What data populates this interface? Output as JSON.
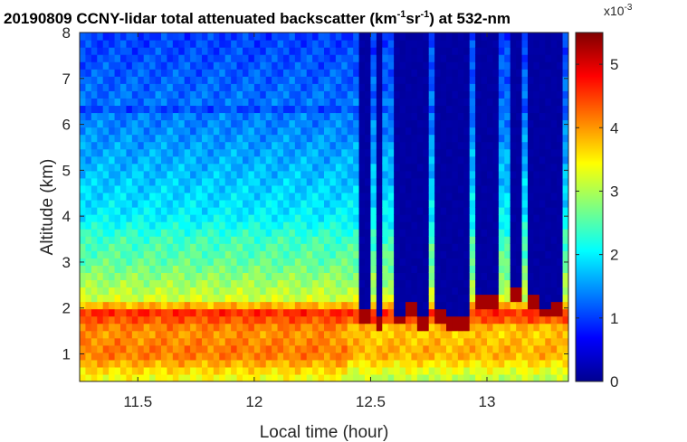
{
  "chart_data": {
    "type": "heatmap",
    "title": {
      "prefix": "20190809 CCNY-lidar total attenuated backscatter (km",
      "sup1": "-1",
      "mid": "sr",
      "sup2": "-1",
      "suffix": ") at 532-nm"
    },
    "xlabel": "Local time (hour)",
    "ylabel": "Altitude (km)",
    "xlim": [
      11.25,
      13.35
    ],
    "ylim": [
      0.4,
      8
    ],
    "xticks": [
      "11.5",
      "12",
      "12.5",
      "13"
    ],
    "xtick_values": [
      11.5,
      12,
      12.5,
      13
    ],
    "yticks": [
      "1",
      "2",
      "3",
      "4",
      "5",
      "6",
      "7",
      "8"
    ],
    "ytick_values": [
      1,
      2,
      3,
      4,
      5,
      6,
      7,
      8
    ],
    "colorbar": {
      "min": 0,
      "max": 5.5,
      "ticks": [
        "0",
        "1",
        "2",
        "3",
        "4",
        "5"
      ],
      "tick_values": [
        0,
        1,
        2,
        3,
        4,
        5
      ],
      "scale_label": "x10",
      "scale_exp": "-3",
      "colormap": "jet"
    },
    "grid": false,
    "field_description": "Backscatter stays near 3.5-4.5 below about 2 km, with a thin strong layer near 1.8-1.9 km; above the boundary layer values fall from about 2.3 near 3.5 km to about 1 near 8 km. After about 12.45 h, vertical low-value columns (near 0) appear above 2 km, capped below by high-value (5+) cloud returns near 1.6-2.6 km.",
    "profile_by_altitude": {
      "altitude_km": [
        0.5,
        1.0,
        1.5,
        1.9,
        2.2,
        3.0,
        3.5,
        4.0,
        5.0,
        6.0,
        7.0,
        8.0
      ],
      "backscatter": [
        3.4,
        4.2,
        4.0,
        4.6,
        3.2,
        2.6,
        2.4,
        2.0,
        1.7,
        1.4,
        1.2,
        1.0
      ]
    },
    "column_bursts_hour": [
      12.47,
      12.54,
      12.62,
      12.67,
      12.73,
      12.8,
      12.85,
      12.9,
      12.97,
      13.03,
      13.13,
      13.2,
      13.25,
      13.3
    ],
    "cloud_base_km": [
      1.9,
      1.75,
      1.85,
      2.05,
      1.8,
      1.9,
      1.7,
      1.75,
      2.2,
      2.3,
      2.4,
      2.2,
      2.0,
      2.1
    ]
  }
}
